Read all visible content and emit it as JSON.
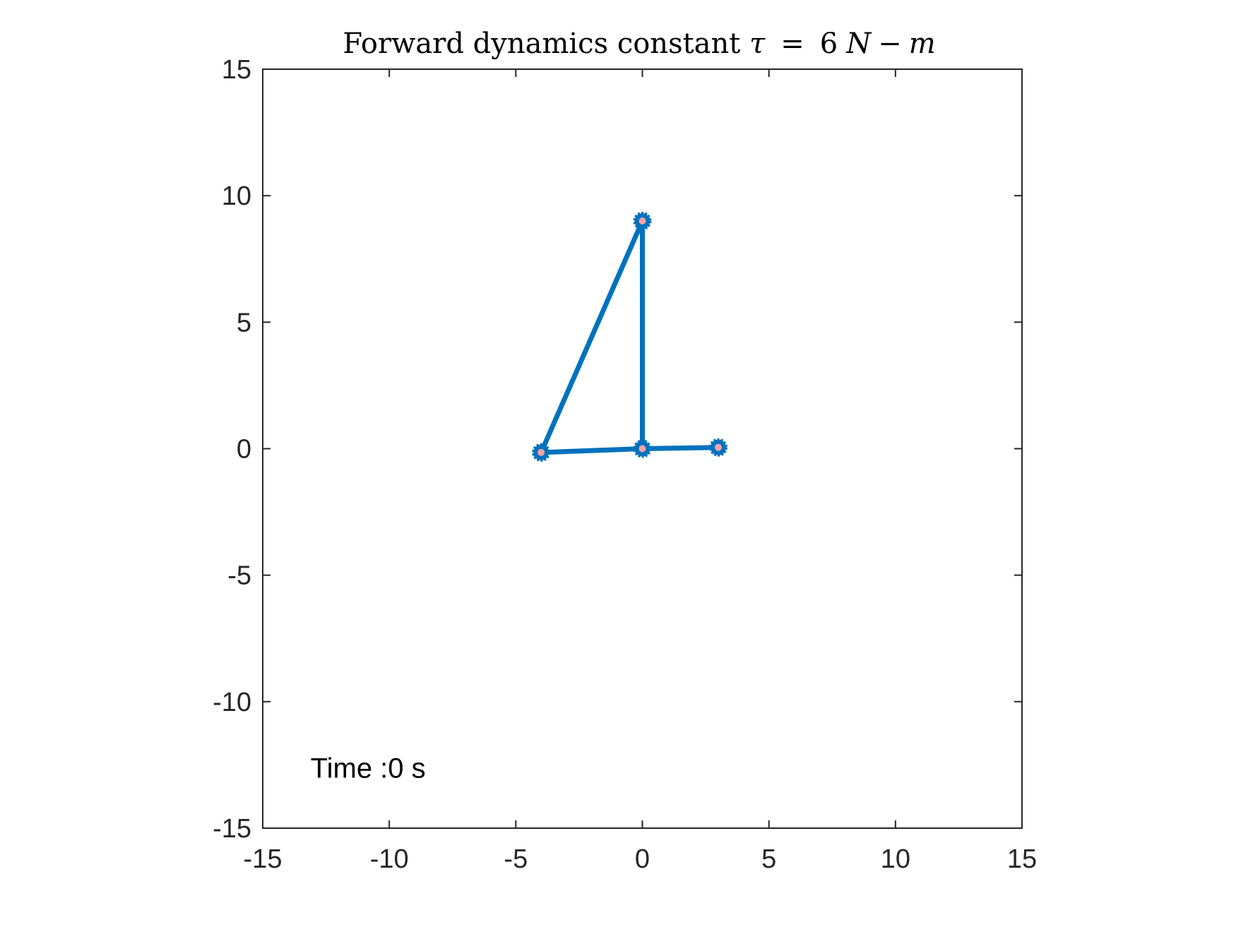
{
  "chart_data": {
    "type": "line",
    "title": {
      "prefix": "Forward dynamics constant ",
      "symbol": "τ",
      "equals": "=",
      "value": "6",
      "unit_n": "N",
      "minus": "−",
      "unit_m": "m"
    },
    "xlabel": "",
    "ylabel": "",
    "xlim": [
      -15,
      15
    ],
    "ylim": [
      -15,
      15
    ],
    "xticks": [
      -15,
      -10,
      -5,
      0,
      5,
      10,
      15
    ],
    "yticks": [
      -15,
      -10,
      -5,
      0,
      5,
      10,
      15
    ],
    "xtick_labels": [
      "-15",
      "-10",
      "-5",
      "0",
      "5",
      "10",
      "15"
    ],
    "ytick_labels": [
      "-15",
      "-10",
      "-5",
      "0",
      "5",
      "10",
      "15"
    ],
    "grid": false,
    "box": true,
    "annotation": {
      "text": "Time :0 s",
      "x": -13,
      "y": -13
    },
    "linkage": {
      "points": [
        {
          "x": -4.0,
          "y": -0.15
        },
        {
          "x": 0.0,
          "y": 0.0
        },
        {
          "x": 0.0,
          "y": 9.0
        },
        {
          "x": 3.0,
          "y": 0.05
        }
      ],
      "links": [
        [
          0,
          1
        ],
        [
          1,
          3
        ],
        [
          1,
          2
        ],
        [
          2,
          0
        ]
      ]
    },
    "colors": {
      "link": "#0072BD",
      "joint_marker": "#0072BD",
      "joint_center": "#F4A3A8",
      "axes": "#262626"
    }
  }
}
